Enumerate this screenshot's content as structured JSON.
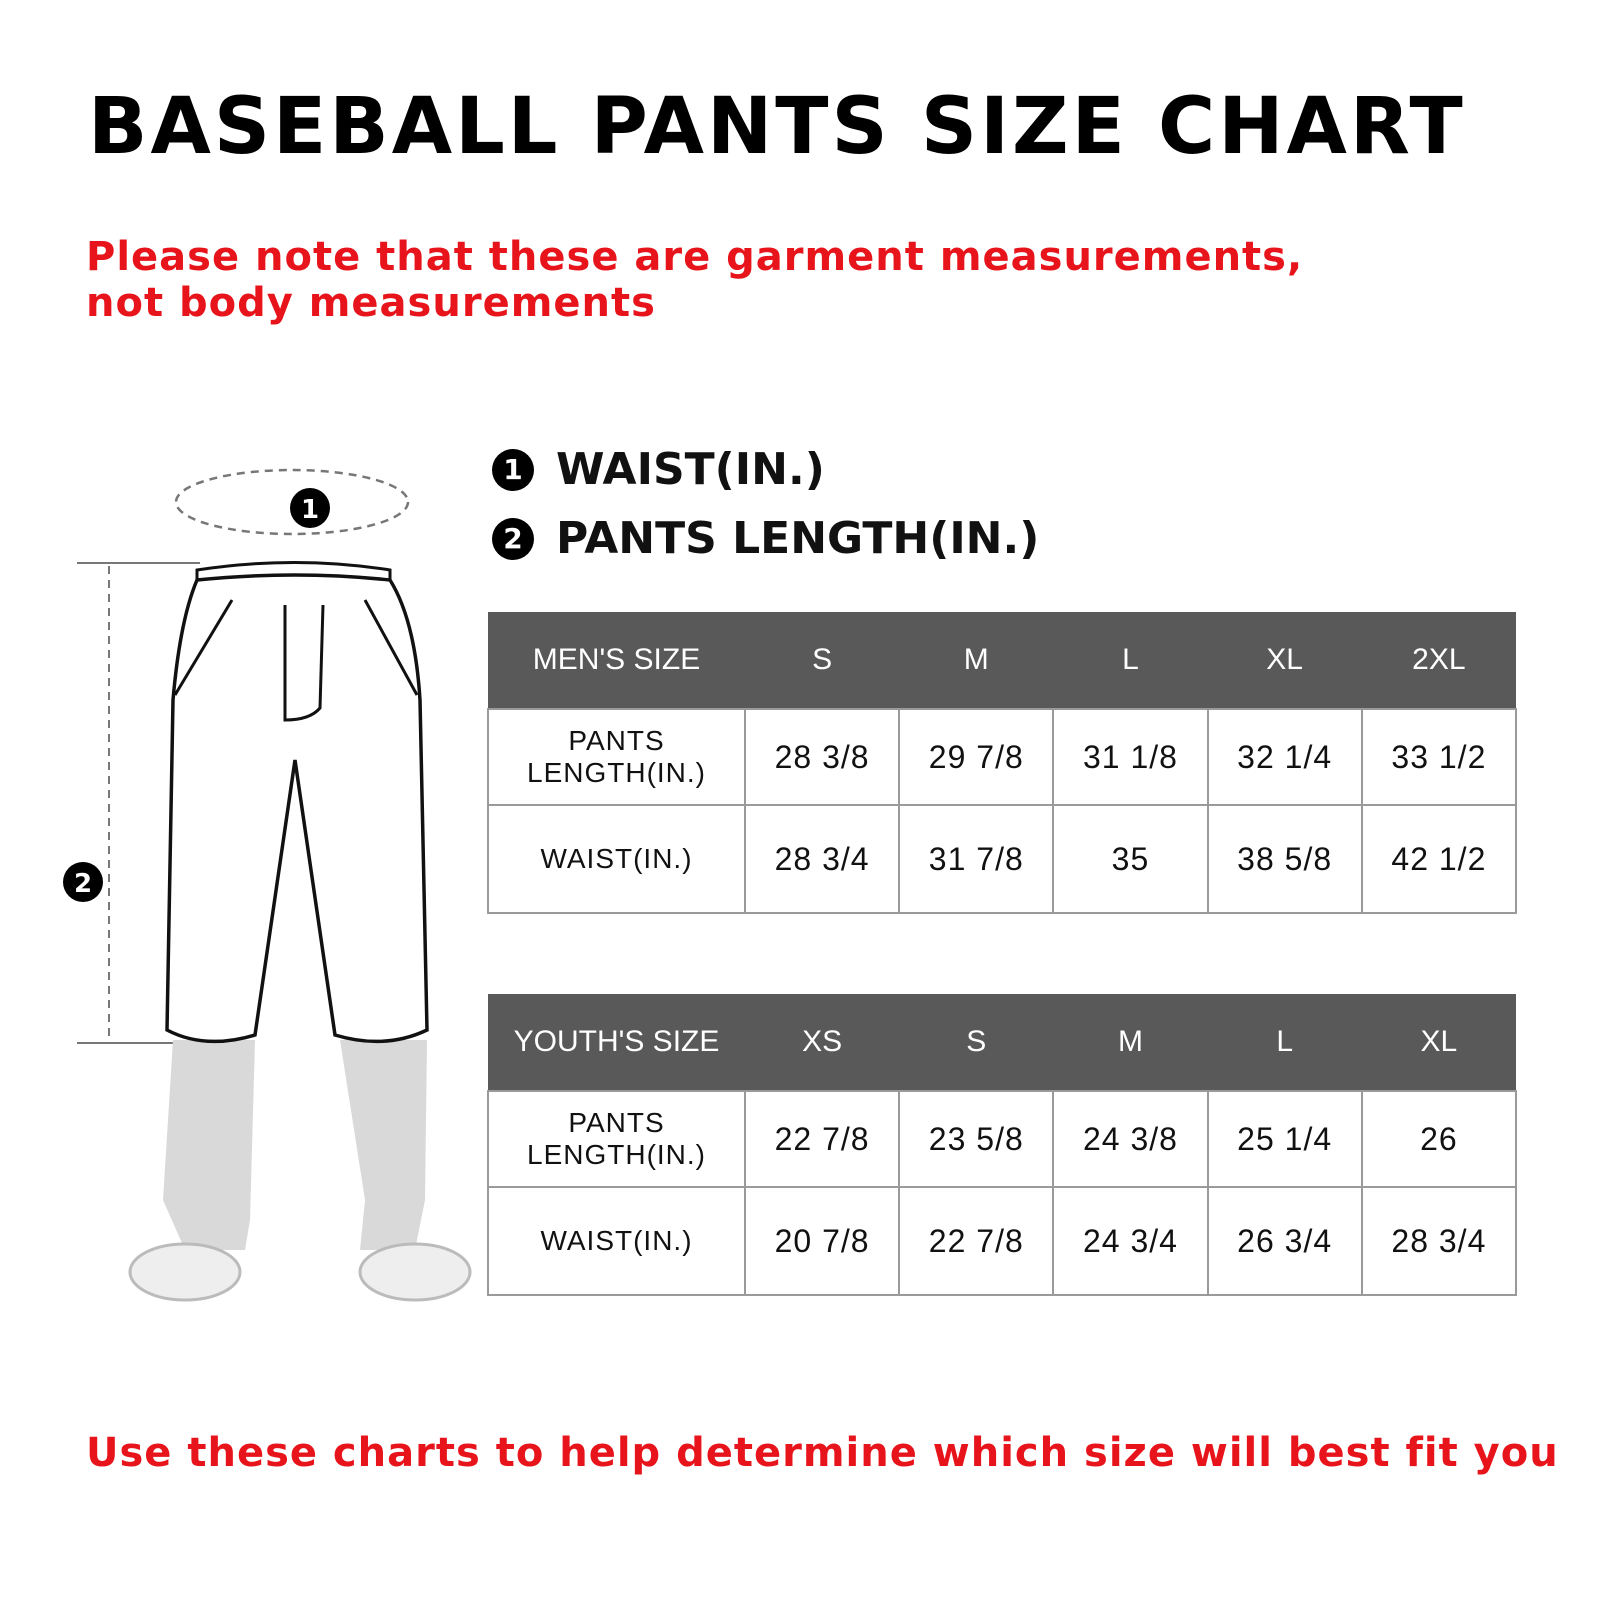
{
  "title": "BASEBALL PANTS SIZE CHART",
  "note": "Please note that these are garment measurements, not body measurements",
  "legend": [
    {
      "number": "1",
      "label": "WAIST(IN.)"
    },
    {
      "number": "2",
      "label": "PANTS LENGTH(IN.)"
    }
  ],
  "mens_table": {
    "header": [
      "MEN'S SIZE",
      "S",
      "M",
      "L",
      "XL",
      "2XL"
    ],
    "rows": [
      {
        "label": "PANTS LENGTH(IN.)",
        "values": [
          "28 3/8",
          "29 7/8",
          "31 1/8",
          "32 1/4",
          "33 1/2"
        ]
      },
      {
        "label": "WAIST(IN.)",
        "values": [
          "28 3/4",
          "31 7/8",
          "35",
          "38 5/8",
          "42 1/2"
        ]
      }
    ]
  },
  "youth_table": {
    "header": [
      "YOUTH'S SIZE",
      "XS",
      "S",
      "M",
      "L",
      "XL"
    ],
    "rows": [
      {
        "label": "PANTS LENGTH(IN.)",
        "values": [
          "22 7/8",
          "23 5/8",
          "24 3/8",
          "25 1/4",
          "26"
        ]
      },
      {
        "label": "WAIST(IN.)",
        "values": [
          "20 7/8",
          "22 7/8",
          "24 3/4",
          "26 3/4",
          "28 3/4"
        ]
      }
    ]
  },
  "footer": "Use these charts to help determine which size will best fit you",
  "colors": {
    "accent": "#e8141b",
    "header_bg": "#595959"
  }
}
